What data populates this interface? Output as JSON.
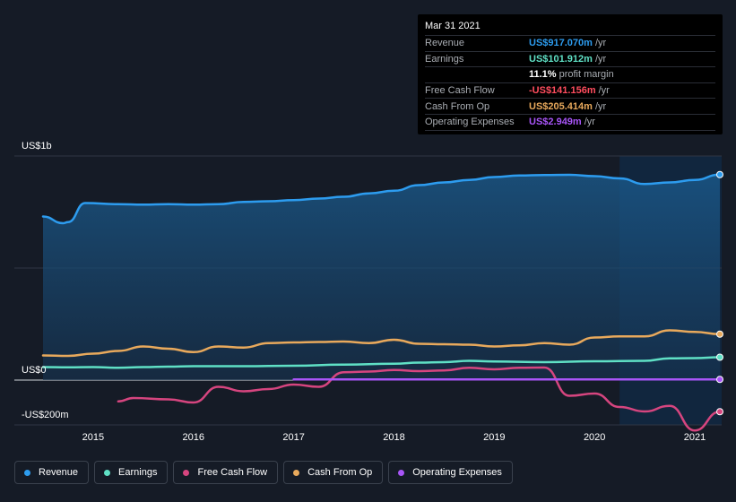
{
  "tooltip": {
    "date": "Mar 31 2021",
    "rows": [
      {
        "label": "Revenue",
        "value": "US$917.070m",
        "unit": "/yr",
        "color": "#2d9cef"
      },
      {
        "label": "Earnings",
        "value": "US$101.912m",
        "unit": "/yr",
        "color": "#5fe0c5"
      },
      {
        "label": "",
        "value": "11.1%",
        "unit": "profit margin",
        "color": "#ffffff"
      },
      {
        "label": "Free Cash Flow",
        "value": "-US$141.156m",
        "unit": "/yr",
        "color": "#ff4d5e"
      },
      {
        "label": "Cash From Op",
        "value": "US$205.414m",
        "unit": "/yr",
        "color": "#e8a95c"
      },
      {
        "label": "Operating Expenses",
        "value": "US$2.949m",
        "unit": "/yr",
        "color": "#a855f7"
      }
    ]
  },
  "legend": [
    {
      "label": "Revenue",
      "color": "#2d9cef"
    },
    {
      "label": "Earnings",
      "color": "#5fe0c5"
    },
    {
      "label": "Free Cash Flow",
      "color": "#d6457f"
    },
    {
      "label": "Cash From Op",
      "color": "#e8a95c"
    },
    {
      "label": "Operating Expenses",
      "color": "#a855f7"
    }
  ],
  "chart_data": {
    "type": "area",
    "y_labels": [
      "US$1b",
      "US$0",
      "-US$200m"
    ],
    "ylim": [
      -200,
      1000
    ],
    "xlim": [
      2014.5,
      2021.25
    ],
    "x_ticks": [
      "2015",
      "2016",
      "2017",
      "2018",
      "2019",
      "2020",
      "2021"
    ],
    "forecast_start": 2020.25,
    "series": [
      {
        "name": "Revenue",
        "color": "#2d9cef",
        "fill": true,
        "x": [
          2014.5,
          2014.7,
          2014.75,
          2014.92,
          2015.25,
          2015.5,
          2015.75,
          2016.0,
          2016.25,
          2016.5,
          2016.75,
          2017.0,
          2017.25,
          2017.5,
          2017.75,
          2018.0,
          2018.25,
          2018.5,
          2018.75,
          2019.0,
          2019.25,
          2019.5,
          2019.75,
          2020.0,
          2020.25,
          2020.5,
          2020.75,
          2021.0,
          2021.25
        ],
        "y": [
          730,
          700,
          705,
          790,
          785,
          783,
          785,
          783,
          785,
          795,
          798,
          803,
          810,
          818,
          833,
          845,
          870,
          882,
          893,
          906,
          913,
          915,
          916,
          910,
          900,
          875,
          882,
          893,
          917
        ]
      },
      {
        "name": "Earnings",
        "color": "#5fe0c5",
        "x": [
          2014.5,
          2014.75,
          2015.0,
          2015.25,
          2015.5,
          2015.75,
          2016.0,
          2016.5,
          2017.0,
          2017.5,
          2018.0,
          2018.25,
          2018.5,
          2018.75,
          2019.0,
          2019.5,
          2020.0,
          2020.5,
          2020.75,
          2021.0,
          2021.25
        ],
        "y": [
          58,
          57,
          58,
          55,
          58,
          60,
          62,
          62,
          64,
          69,
          73,
          78,
          80,
          86,
          83,
          80,
          84,
          86,
          97,
          98,
          102
        ]
      },
      {
        "name": "Free Cash Flow",
        "color": "#d6457f",
        "x": [
          2015.25,
          2015.4,
          2015.75,
          2016.0,
          2016.25,
          2016.5,
          2016.75,
          2017.0,
          2017.25,
          2017.5,
          2017.75,
          2018.0,
          2018.25,
          2018.5,
          2018.75,
          2019.0,
          2019.25,
          2019.5,
          2019.75,
          2020.0,
          2020.25,
          2020.5,
          2020.75,
          2021.0,
          2021.25
        ],
        "y": [
          -95,
          -80,
          -86,
          -100,
          -30,
          -50,
          -40,
          -20,
          -30,
          35,
          38,
          45,
          40,
          43,
          55,
          48,
          55,
          56,
          -70,
          -60,
          -120,
          -140,
          -115,
          -225,
          -141
        ]
      },
      {
        "name": "Cash From Op",
        "color": "#e8a95c",
        "x": [
          2014.5,
          2014.75,
          2015.0,
          2015.25,
          2015.5,
          2015.75,
          2016.0,
          2016.25,
          2016.5,
          2016.75,
          2017.0,
          2017.25,
          2017.5,
          2017.75,
          2018.0,
          2018.25,
          2018.5,
          2018.75,
          2019.0,
          2019.25,
          2019.5,
          2019.75,
          2020.0,
          2020.25,
          2020.5,
          2020.75,
          2021.0,
          2021.25
        ],
        "y": [
          110,
          108,
          118,
          130,
          150,
          140,
          125,
          150,
          145,
          165,
          168,
          170,
          172,
          165,
          180,
          162,
          160,
          158,
          150,
          155,
          165,
          158,
          190,
          195,
          195,
          222,
          215,
          205
        ]
      },
      {
        "name": "Operating Expenses",
        "color": "#a855f7",
        "x": [
          2017.0,
          2017.5,
          2018.0,
          2018.5,
          2019.0,
          2019.5,
          2020.0,
          2020.5,
          2021.0,
          2021.25
        ],
        "y": [
          3,
          3,
          3,
          3,
          3,
          3,
          3,
          3,
          3,
          3
        ]
      }
    ]
  }
}
